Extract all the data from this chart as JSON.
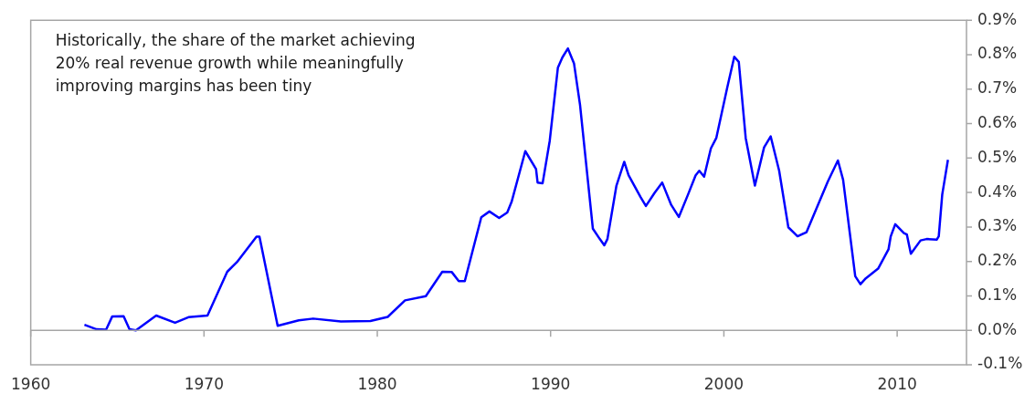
{
  "chart_data": {
    "type": "line",
    "annotations": [
      "Historically, the share of the market achieving\n20% real revenue growth while meaningfully\nimproving margins has been tiny"
    ],
    "x": [
      1963.1,
      1963.8,
      1964.35,
      1964.7,
      1965.36,
      1965.7,
      1966.07,
      1967.24,
      1968.33,
      1969.1,
      1970.2,
      1971.34,
      1971.9,
      1973.03,
      1973.2,
      1974.25,
      1975.47,
      1976.3,
      1977.9,
      1979.6,
      1980.6,
      1981.6,
      1982.8,
      1983.75,
      1984.3,
      1984.7,
      1985.05,
      1986.0,
      1986.47,
      1987.03,
      1987.5,
      1987.75,
      1988.54,
      1989.16,
      1989.25,
      1989.54,
      1989.95,
      1990.42,
      1990.68,
      1991.0,
      1991.35,
      1991.7,
      1992.44,
      1992.84,
      1993.1,
      1993.28,
      1993.8,
      1994.25,
      1994.5,
      1995.2,
      1995.5,
      1996.0,
      1996.44,
      1996.96,
      1997.4,
      1997.93,
      1998.37,
      1998.58,
      1998.86,
      1999.25,
      1999.56,
      2000.2,
      2000.6,
      2000.86,
      2001.26,
      2001.79,
      2002.32,
      2002.7,
      2003.19,
      2003.72,
      2004.25,
      2004.77,
      2005.39,
      2006.0,
      2006.58,
      2006.88,
      2007.58,
      2007.88,
      2008.19,
      2008.9,
      2009.5,
      2009.63,
      2009.89,
      2010.39,
      2010.56,
      2010.79,
      2011.35,
      2011.7,
      2012.28,
      2012.4,
      2012.6,
      2012.93
    ],
    "series": [
      {
        "color": "#0000ff",
        "values": [
          0.016,
          0.003,
          0.002,
          0.04,
          0.041,
          0.003,
          0.0,
          0.043,
          0.022,
          0.038,
          0.043,
          0.17,
          0.198,
          0.272,
          0.272,
          0.013,
          0.029,
          0.034,
          0.026,
          0.027,
          0.039,
          0.087,
          0.099,
          0.17,
          0.169,
          0.143,
          0.143,
          0.328,
          0.345,
          0.326,
          0.342,
          0.373,
          0.52,
          0.468,
          0.429,
          0.427,
          0.55,
          0.762,
          0.792,
          0.818,
          0.775,
          0.654,
          0.295,
          0.265,
          0.247,
          0.265,
          0.42,
          0.489,
          0.45,
          0.386,
          0.361,
          0.399,
          0.429,
          0.364,
          0.329,
          0.394,
          0.45,
          0.463,
          0.446,
          0.528,
          0.558,
          0.706,
          0.794,
          0.779,
          0.558,
          0.42,
          0.531,
          0.563,
          0.463,
          0.299,
          0.273,
          0.285,
          0.359,
          0.432,
          0.493,
          0.437,
          0.157,
          0.134,
          0.151,
          0.179,
          0.235,
          0.273,
          0.308,
          0.282,
          0.278,
          0.222,
          0.261,
          0.265,
          0.263,
          0.273,
          0.394,
          0.495
        ]
      }
    ],
    "xlim": [
      1960,
      2014
    ],
    "xticks": [
      1960,
      1970,
      1980,
      1990,
      2000,
      2010
    ],
    "ylim": [
      -0.1,
      0.9
    ],
    "yticks": [
      {
        "value": -0.1,
        "label": "-0.1%"
      },
      {
        "value": 0,
        "label": "0.0%"
      },
      {
        "value": 0.1,
        "label": "0.1%"
      },
      {
        "value": 0.2,
        "label": "0.2%"
      },
      {
        "value": 0.3,
        "label": "0.3%"
      },
      {
        "value": 0.4,
        "label": "0.4%"
      },
      {
        "value": 0.5,
        "label": "0.5%"
      },
      {
        "value": 0.6,
        "label": "0.6%"
      },
      {
        "value": 0.7,
        "label": "0.7%"
      },
      {
        "value": 0.8,
        "label": "0.8%"
      },
      {
        "value": 0.9,
        "label": "0.9%"
      }
    ],
    "ref_lines": [
      {
        "axis": "y",
        "value": 0,
        "color": "#a6a6a6"
      }
    ],
    "grid": false,
    "legend": false,
    "marker": "none",
    "line_style": "solid"
  }
}
